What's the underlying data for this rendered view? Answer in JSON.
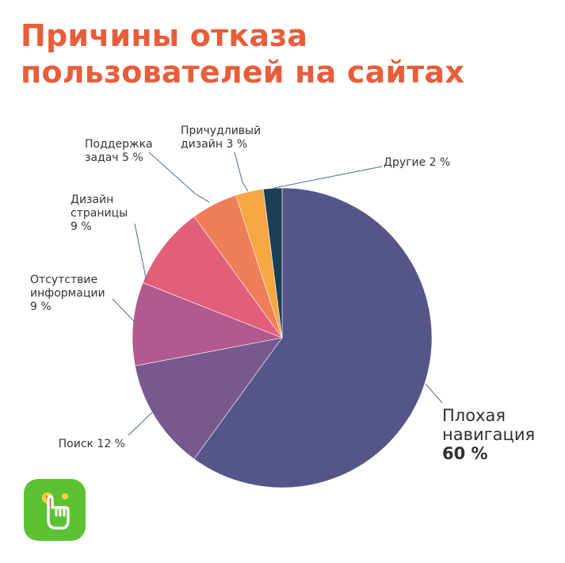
{
  "header": {
    "title_line1": "Причины отказа",
    "title_line2": "пользователей на сайтах"
  },
  "colors": {
    "title": "#e85d3a",
    "logo_bg": "#5cc233"
  },
  "logo": {
    "icon": "pointing-hand-icon"
  },
  "chart_data": {
    "type": "pie",
    "title": "Причины отказа пользователей на сайтах",
    "unit": "%",
    "slices": [
      {
        "key": "nav",
        "label_lines": [
          "Плохая",
          "навигация"
        ],
        "value_text": "60 %",
        "value": 60,
        "color": "#55558a"
      },
      {
        "key": "search",
        "label_lines": [
          "Поиск 12 %"
        ],
        "value": 12,
        "color": "#77588f"
      },
      {
        "key": "info",
        "label_lines": [
          "Отсутствие",
          "информации",
          "9 %"
        ],
        "value": 9,
        "color": "#b25a8e"
      },
      {
        "key": "design",
        "label_lines": [
          "Дизайн",
          "страницы",
          "9 %"
        ],
        "value": 9,
        "color": "#e25f79"
      },
      {
        "key": "support",
        "label_lines": [
          "Поддержка",
          "задач 5 %"
        ],
        "value": 5,
        "color": "#f07d5a"
      },
      {
        "key": "fancy",
        "label_lines": [
          "Причудливый",
          "дизайн 3 %"
        ],
        "value": 3,
        "color": "#f5a742"
      },
      {
        "key": "other",
        "label_lines": [
          "Другие 2 %"
        ],
        "value": 2,
        "color": "#1b3f55"
      }
    ]
  }
}
